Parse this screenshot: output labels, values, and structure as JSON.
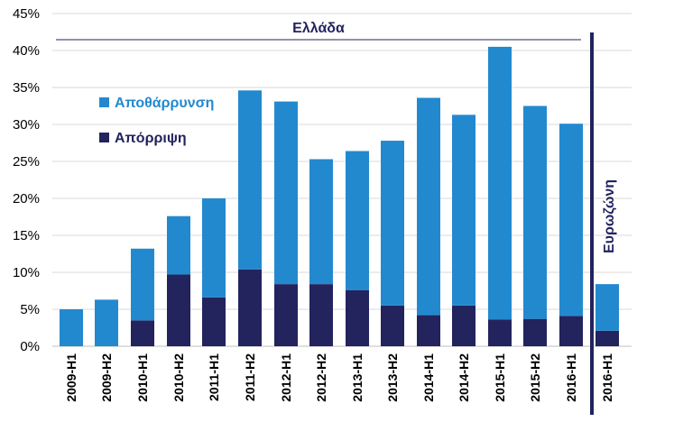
{
  "chart_data": {
    "type": "bar",
    "stacked": true,
    "categories": [
      "2009-H1",
      "2009-H2",
      "2010-H1",
      "2010-H2",
      "2011-H1",
      "2011-H2",
      "2012-H1",
      "2012-H2",
      "2013-H1",
      "2013-H2",
      "2014-H1",
      "2014-H2",
      "2015-H1",
      "2015-H2",
      "2016-H1",
      "2016-H1"
    ],
    "series": [
      {
        "name": "Απόρριψη",
        "color": "#23235e",
        "values": [
          0,
          0,
          3.5,
          9.7,
          6.6,
          10.4,
          8.4,
          8.4,
          7.6,
          5.5,
          4.2,
          5.5,
          3.6,
          3.7,
          4.1,
          2.1
        ]
      },
      {
        "name": "Αποθάρρυνση",
        "color": "#2389cf",
        "values": [
          5.0,
          6.3,
          9.7,
          7.9,
          13.4,
          24.2,
          24.7,
          16.9,
          18.8,
          22.3,
          29.4,
          25.8,
          36.9,
          28.8,
          26.0,
          6.3
        ]
      }
    ],
    "ylim": [
      0,
      45
    ],
    "yticks": [
      "0%",
      "5%",
      "10%",
      "15%",
      "20%",
      "25%",
      "30%",
      "35%",
      "40%",
      "45%"
    ],
    "grid": true,
    "legend_position": "top-left",
    "annotations": {
      "greece": "Ελλάδα",
      "eurozone": "Ευρωζώνη"
    }
  }
}
